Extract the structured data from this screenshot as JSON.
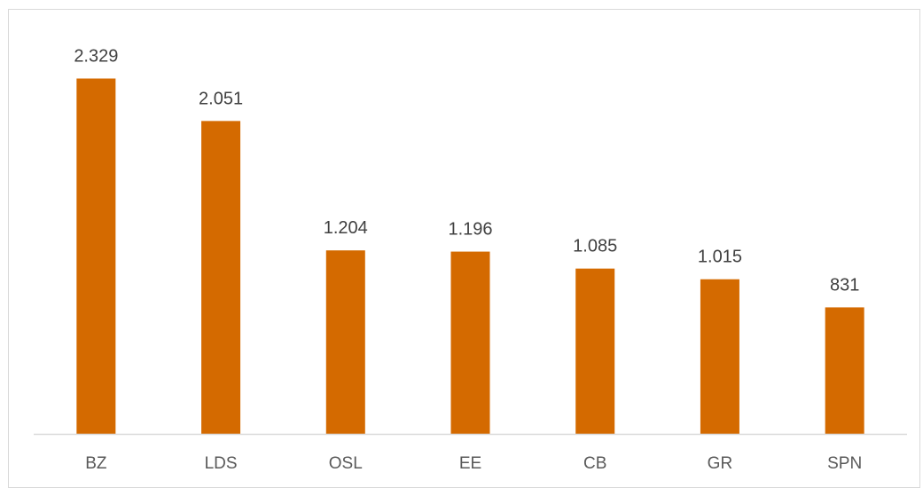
{
  "chart_data": {
    "type": "bar",
    "categories": [
      "BZ",
      "LDS",
      "OSL",
      "EE",
      "CB",
      "GR",
      "SPN"
    ],
    "values": [
      2329,
      2051,
      1204,
      1196,
      1085,
      1015,
      831
    ],
    "value_labels": [
      "2.329",
      "2.051",
      "1.204",
      "1.196",
      "1.085",
      "1.015",
      "831"
    ],
    "title": "",
    "xlabel": "",
    "ylabel": "",
    "ylim": [
      0,
      2500
    ],
    "grid": false,
    "legend": "none",
    "bar_color": "#D46A00",
    "axis_color": "#d9d9d9"
  }
}
